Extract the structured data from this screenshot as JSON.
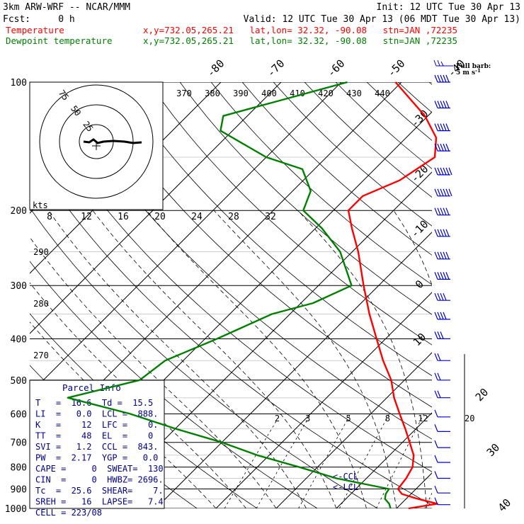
{
  "header": {
    "model": "3km ARW-WRF -- NCAR/MMM",
    "init": "Init: 12 UTC Tue 30 Apr 13",
    "fcst": "Fcst:     0 h",
    "valid": "Valid: 12 UTC Tue 30 Apr 13 (06 MDT Tue 30 Apr 13)"
  },
  "legend": [
    {
      "label": "Temperature",
      "info": "x,y=732.05,265.21   lat,lon= 32.32, -90.08   stn=JAN ,72235",
      "color": "#ff0000"
    },
    {
      "label": "Dewpoint temperature",
      "info": "x,y=732.05,265.21   lat,lon= 32.32, -90.08   stn=JAN ,72235",
      "color": "#008000"
    }
  ],
  "barb_legend": {
    "line1": "Full barb:",
    "line2": "5 m s",
    "sup": "-1"
  },
  "hodograph": {
    "units": "kts",
    "rings": [
      "25",
      "50",
      "75"
    ]
  },
  "parcel_info": {
    "title": "Parcel Info",
    "rows": [
      "T   =  16.6  Td =  15.5",
      "LI  =   0.0  LCL =  888.",
      "K   =    12  LFC =    0.",
      "TT  =    48  EL  =    0",
      "SVI =   1.2  CCL =  843.",
      "PW  =  2.17  YGP =   0.0",
      "CAPE =     0  SWEAT=  130",
      "CIN  =     0  HWBZ= 2696.",
      "Tc  =  25.6  SHEAR=    7.",
      "SREH =   16  LAPSE=   7.4",
      "CELL = 223/08"
    ]
  },
  "level_markers": {
    "ccl": "<-CCL",
    "lcl": "<-LCL"
  },
  "chart_data": {
    "type": "line",
    "title": "",
    "y_axis": {
      "label": "",
      "scale": "log",
      "range": [
        1000,
        100
      ],
      "ticks": [
        100,
        200,
        300,
        400,
        500,
        600,
        700,
        800,
        900,
        1000
      ]
    },
    "isotherm_labels": [
      "-80",
      "-70",
      "-60",
      "-50",
      "-40",
      "-30",
      "-20",
      "-10",
      "0",
      "10",
      "20",
      "30",
      "40"
    ],
    "dry_adiabat_labels": [
      "370",
      "380",
      "390",
      "400",
      "410",
      "420",
      "430",
      "440",
      "290",
      "280",
      "270"
    ],
    "mixing_ratio_labels": [
      "2",
      "3",
      "5",
      "8",
      "12",
      "20"
    ],
    "hodograph_speed_labels": [
      "8",
      "12",
      "16",
      "20",
      "24",
      "28",
      "32"
    ],
    "series": [
      {
        "name": "Temperature",
        "color": "#ff0000",
        "unit": "C",
        "points": [
          [
            1000,
            22
          ],
          [
            975,
            26
          ],
          [
            950,
            22
          ],
          [
            925,
            18.5
          ],
          [
            900,
            17
          ],
          [
            850,
            16.6
          ],
          [
            800,
            15.8
          ],
          [
            750,
            14
          ],
          [
            700,
            11.2
          ],
          [
            650,
            8.2
          ],
          [
            600,
            4.8
          ],
          [
            550,
            1.2
          ],
          [
            500,
            -2.2
          ],
          [
            450,
            -6.8
          ],
          [
            400,
            -11.5
          ],
          [
            350,
            -16.8
          ],
          [
            300,
            -22.5
          ],
          [
            250,
            -29
          ],
          [
            220,
            -34
          ],
          [
            200,
            -37.5
          ],
          [
            185,
            -37.5
          ],
          [
            170,
            -34
          ],
          [
            150,
            -32
          ],
          [
            135,
            -35
          ],
          [
            120,
            -40.5
          ],
          [
            100,
            -51
          ]
        ]
      },
      {
        "name": "Dewpoint temperature",
        "color": "#008000",
        "unit": "C",
        "points": [
          [
            1000,
            19
          ],
          [
            975,
            18
          ],
          [
            950,
            16.5
          ],
          [
            925,
            15.8
          ],
          [
            900,
            15.5
          ],
          [
            850,
            5
          ],
          [
            800,
            -3
          ],
          [
            750,
            -12
          ],
          [
            700,
            -20
          ],
          [
            650,
            -30
          ],
          [
            600,
            -40
          ],
          [
            550,
            -53
          ],
          [
            500,
            -44
          ],
          [
            450,
            -43
          ],
          [
            400,
            -38
          ],
          [
            350,
            -33
          ],
          [
            330,
            -28
          ],
          [
            300,
            -24.5
          ],
          [
            250,
            -32
          ],
          [
            220,
            -39
          ],
          [
            200,
            -45
          ],
          [
            180,
            -47
          ],
          [
            160,
            -52
          ],
          [
            150,
            -60
          ],
          [
            130,
            -72
          ],
          [
            120,
            -74
          ],
          [
            100,
            -59
          ]
        ]
      }
    ],
    "wind_barbs": [
      {
        "p": 100,
        "speed_ms": 25
      },
      {
        "p": 115,
        "speed_ms": 25
      },
      {
        "p": 130,
        "speed_ms": 25
      },
      {
        "p": 145,
        "speed_ms": 25
      },
      {
        "p": 165,
        "speed_ms": 30
      },
      {
        "p": 185,
        "speed_ms": 30
      },
      {
        "p": 205,
        "speed_ms": 25
      },
      {
        "p": 230,
        "speed_ms": 25
      },
      {
        "p": 260,
        "speed_ms": 25
      },
      {
        "p": 290,
        "speed_ms": 25
      },
      {
        "p": 325,
        "speed_ms": 20
      },
      {
        "p": 360,
        "speed_ms": 20
      },
      {
        "p": 400,
        "speed_ms": 15
      },
      {
        "p": 450,
        "speed_ms": 10
      },
      {
        "p": 500,
        "speed_ms": 10
      },
      {
        "p": 550,
        "speed_ms": 10
      },
      {
        "p": 610,
        "speed_ms": 5
      },
      {
        "p": 660,
        "speed_ms": 5
      },
      {
        "p": 720,
        "speed_ms": 5
      },
      {
        "p": 780,
        "speed_ms": 5
      },
      {
        "p": 850,
        "speed_ms": 5
      },
      {
        "p": 920,
        "speed_ms": 5
      },
      {
        "p": 980,
        "speed_ms": 5
      }
    ]
  }
}
